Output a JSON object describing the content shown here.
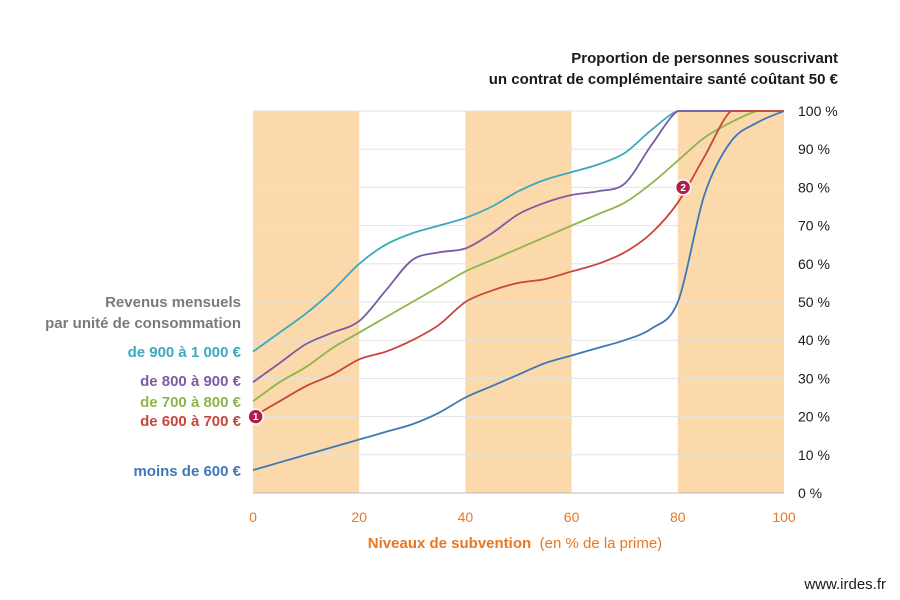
{
  "chart_data": {
    "type": "line",
    "title_line1": "Proportion de personnes souscrivant",
    "title_line2": "un contrat de complémentaire santé coûtant 50 €",
    "xlabel_bold": "Niveaux de subvention",
    "xlabel_rest": "(en % de la prime)",
    "xlim": [
      0,
      100
    ],
    "ylim": [
      0,
      100
    ],
    "x_ticks": [
      "0",
      "20",
      "40",
      "60",
      "80",
      "100"
    ],
    "y_ticks": [
      "0 %",
      "10 %",
      "20 %",
      "30 %",
      "40 %",
      "50 %",
      "60 %",
      "70 %",
      "80 %",
      "90 %",
      "100 %"
    ],
    "y_axis_side": "right",
    "shaded_bands": [
      [
        0,
        20
      ],
      [
        40,
        60
      ],
      [
        80,
        100
      ]
    ],
    "band_color": "#fbd9aa",
    "grid": true,
    "legend_title_line1": "Revenus mensuels",
    "legend_title_line2": "par unité de consommation",
    "series": [
      {
        "name": "de 900 à 1 000 €",
        "color": "#3ba9bf",
        "x": [
          0,
          5,
          10,
          15,
          20,
          25,
          30,
          35,
          40,
          45,
          50,
          55,
          60,
          65,
          70,
          75,
          80,
          85,
          90,
          95,
          100
        ],
        "y": [
          37,
          42,
          47,
          53,
          60,
          65,
          68,
          70,
          72,
          75,
          79,
          82,
          84,
          86,
          89,
          95,
          100,
          100,
          100,
          100,
          100
        ]
      },
      {
        "name": "de 800 à 900 €",
        "color": "#7b5ba6",
        "x": [
          0,
          5,
          10,
          15,
          20,
          25,
          30,
          35,
          40,
          45,
          50,
          55,
          60,
          65,
          70,
          75,
          80,
          85,
          90,
          95,
          100
        ],
        "y": [
          29,
          34,
          39,
          42,
          45,
          53,
          61,
          63,
          64,
          68,
          73,
          76,
          78,
          79,
          81,
          91,
          100,
          100,
          100,
          100,
          100
        ]
      },
      {
        "name": "de 700 à 800 €",
        "color": "#8fb54a",
        "x": [
          0,
          5,
          10,
          15,
          20,
          25,
          30,
          35,
          40,
          45,
          50,
          55,
          60,
          65,
          70,
          75,
          80,
          85,
          90,
          95,
          100
        ],
        "y": [
          24,
          29,
          33,
          38,
          42,
          46,
          50,
          54,
          58,
          61,
          64,
          67,
          70,
          73,
          76,
          81,
          87,
          93,
          97,
          100,
          100
        ]
      },
      {
        "name": "de 600 à 700 €",
        "color": "#c9453c",
        "x": [
          0,
          5,
          10,
          15,
          20,
          25,
          30,
          35,
          40,
          45,
          50,
          55,
          60,
          65,
          70,
          75,
          80,
          85,
          90,
          95,
          100
        ],
        "y": [
          20,
          24,
          28,
          31,
          35,
          37,
          40,
          44,
          50,
          53,
          55,
          56,
          58,
          60,
          63,
          68,
          76,
          88,
          100,
          100,
          100
        ]
      },
      {
        "name": "moins de 600 €",
        "color": "#3f78b7",
        "x": [
          0,
          5,
          10,
          15,
          20,
          25,
          30,
          35,
          40,
          45,
          50,
          55,
          60,
          65,
          70,
          75,
          80,
          85,
          90,
          95,
          100
        ],
        "y": [
          6,
          8,
          10,
          12,
          14,
          16,
          18,
          21,
          25,
          28,
          31,
          34,
          36,
          38,
          40,
          43,
          50,
          78,
          92,
          97,
          100
        ]
      }
    ],
    "markers": [
      {
        "label": "1",
        "x": 0.5,
        "y": 20,
        "color": "#b01e4c"
      },
      {
        "label": "2",
        "x": 81,
        "y": 80,
        "color": "#b01e4c"
      }
    ]
  },
  "source": "www.irdes.fr"
}
